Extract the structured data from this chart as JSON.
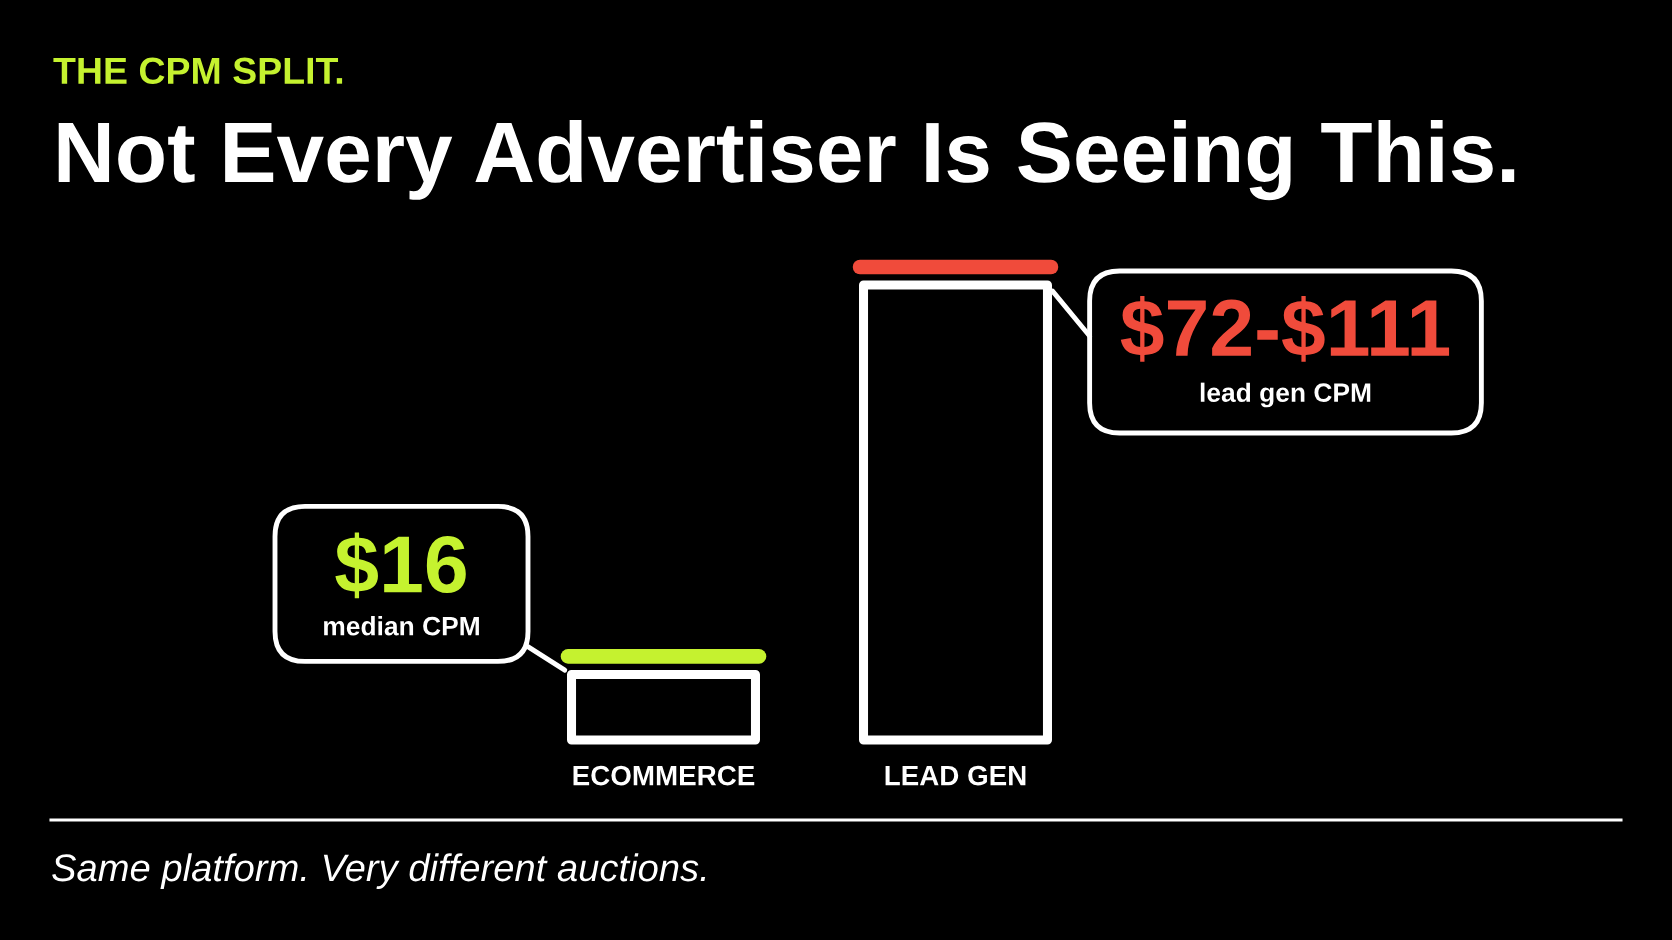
{
  "chart_data": {
    "type": "bar",
    "subtitle": "THE CPM SPLIT.",
    "title": "Not Every Advertiser Is Seeing This.",
    "categories": [
      "ECOMMERCE",
      "LEAD GEN"
    ],
    "values": [
      16,
      111
    ],
    "color": "#000000",
    "value_labels": [
      "$16",
      "$72-$111"
    ],
    "annotations": [
      "median CPM",
      "lead gen CPM",
      "Same platform. Very different auctions."
    ]
  }
}
